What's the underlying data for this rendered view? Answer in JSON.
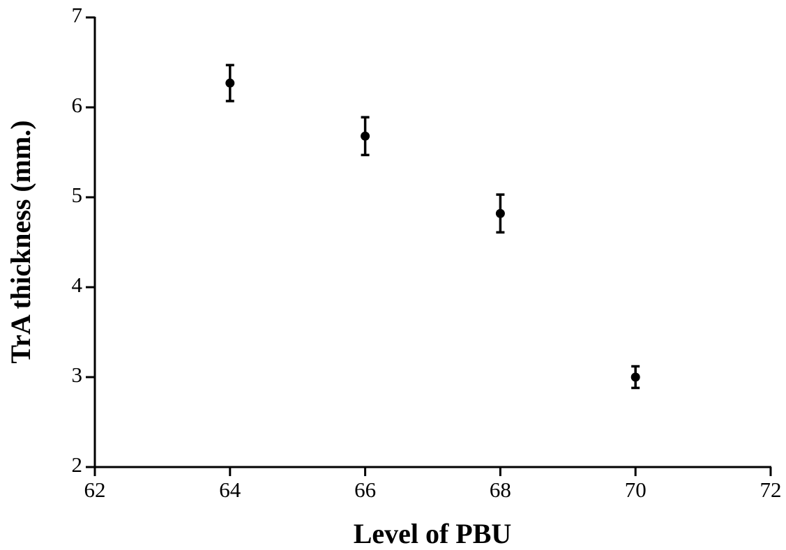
{
  "chart_data": {
    "type": "scatter",
    "x_label": "Level of PBU",
    "y_label": "TrA thickness (mm.)",
    "x": [
      64,
      66,
      68,
      70
    ],
    "series": [
      {
        "color": "#000000",
        "values": [
          6.27,
          5.68,
          4.82,
          3.0
        ],
        "errors": [
          0.2,
          0.21,
          0.21,
          0.12
        ]
      }
    ],
    "xlim": [
      62,
      72
    ],
    "xticks": [
      62,
      64,
      66,
      68,
      70,
      72
    ],
    "ylim": [
      2,
      7
    ],
    "yticks": [
      2,
      3,
      4,
      5,
      6,
      7
    ]
  }
}
